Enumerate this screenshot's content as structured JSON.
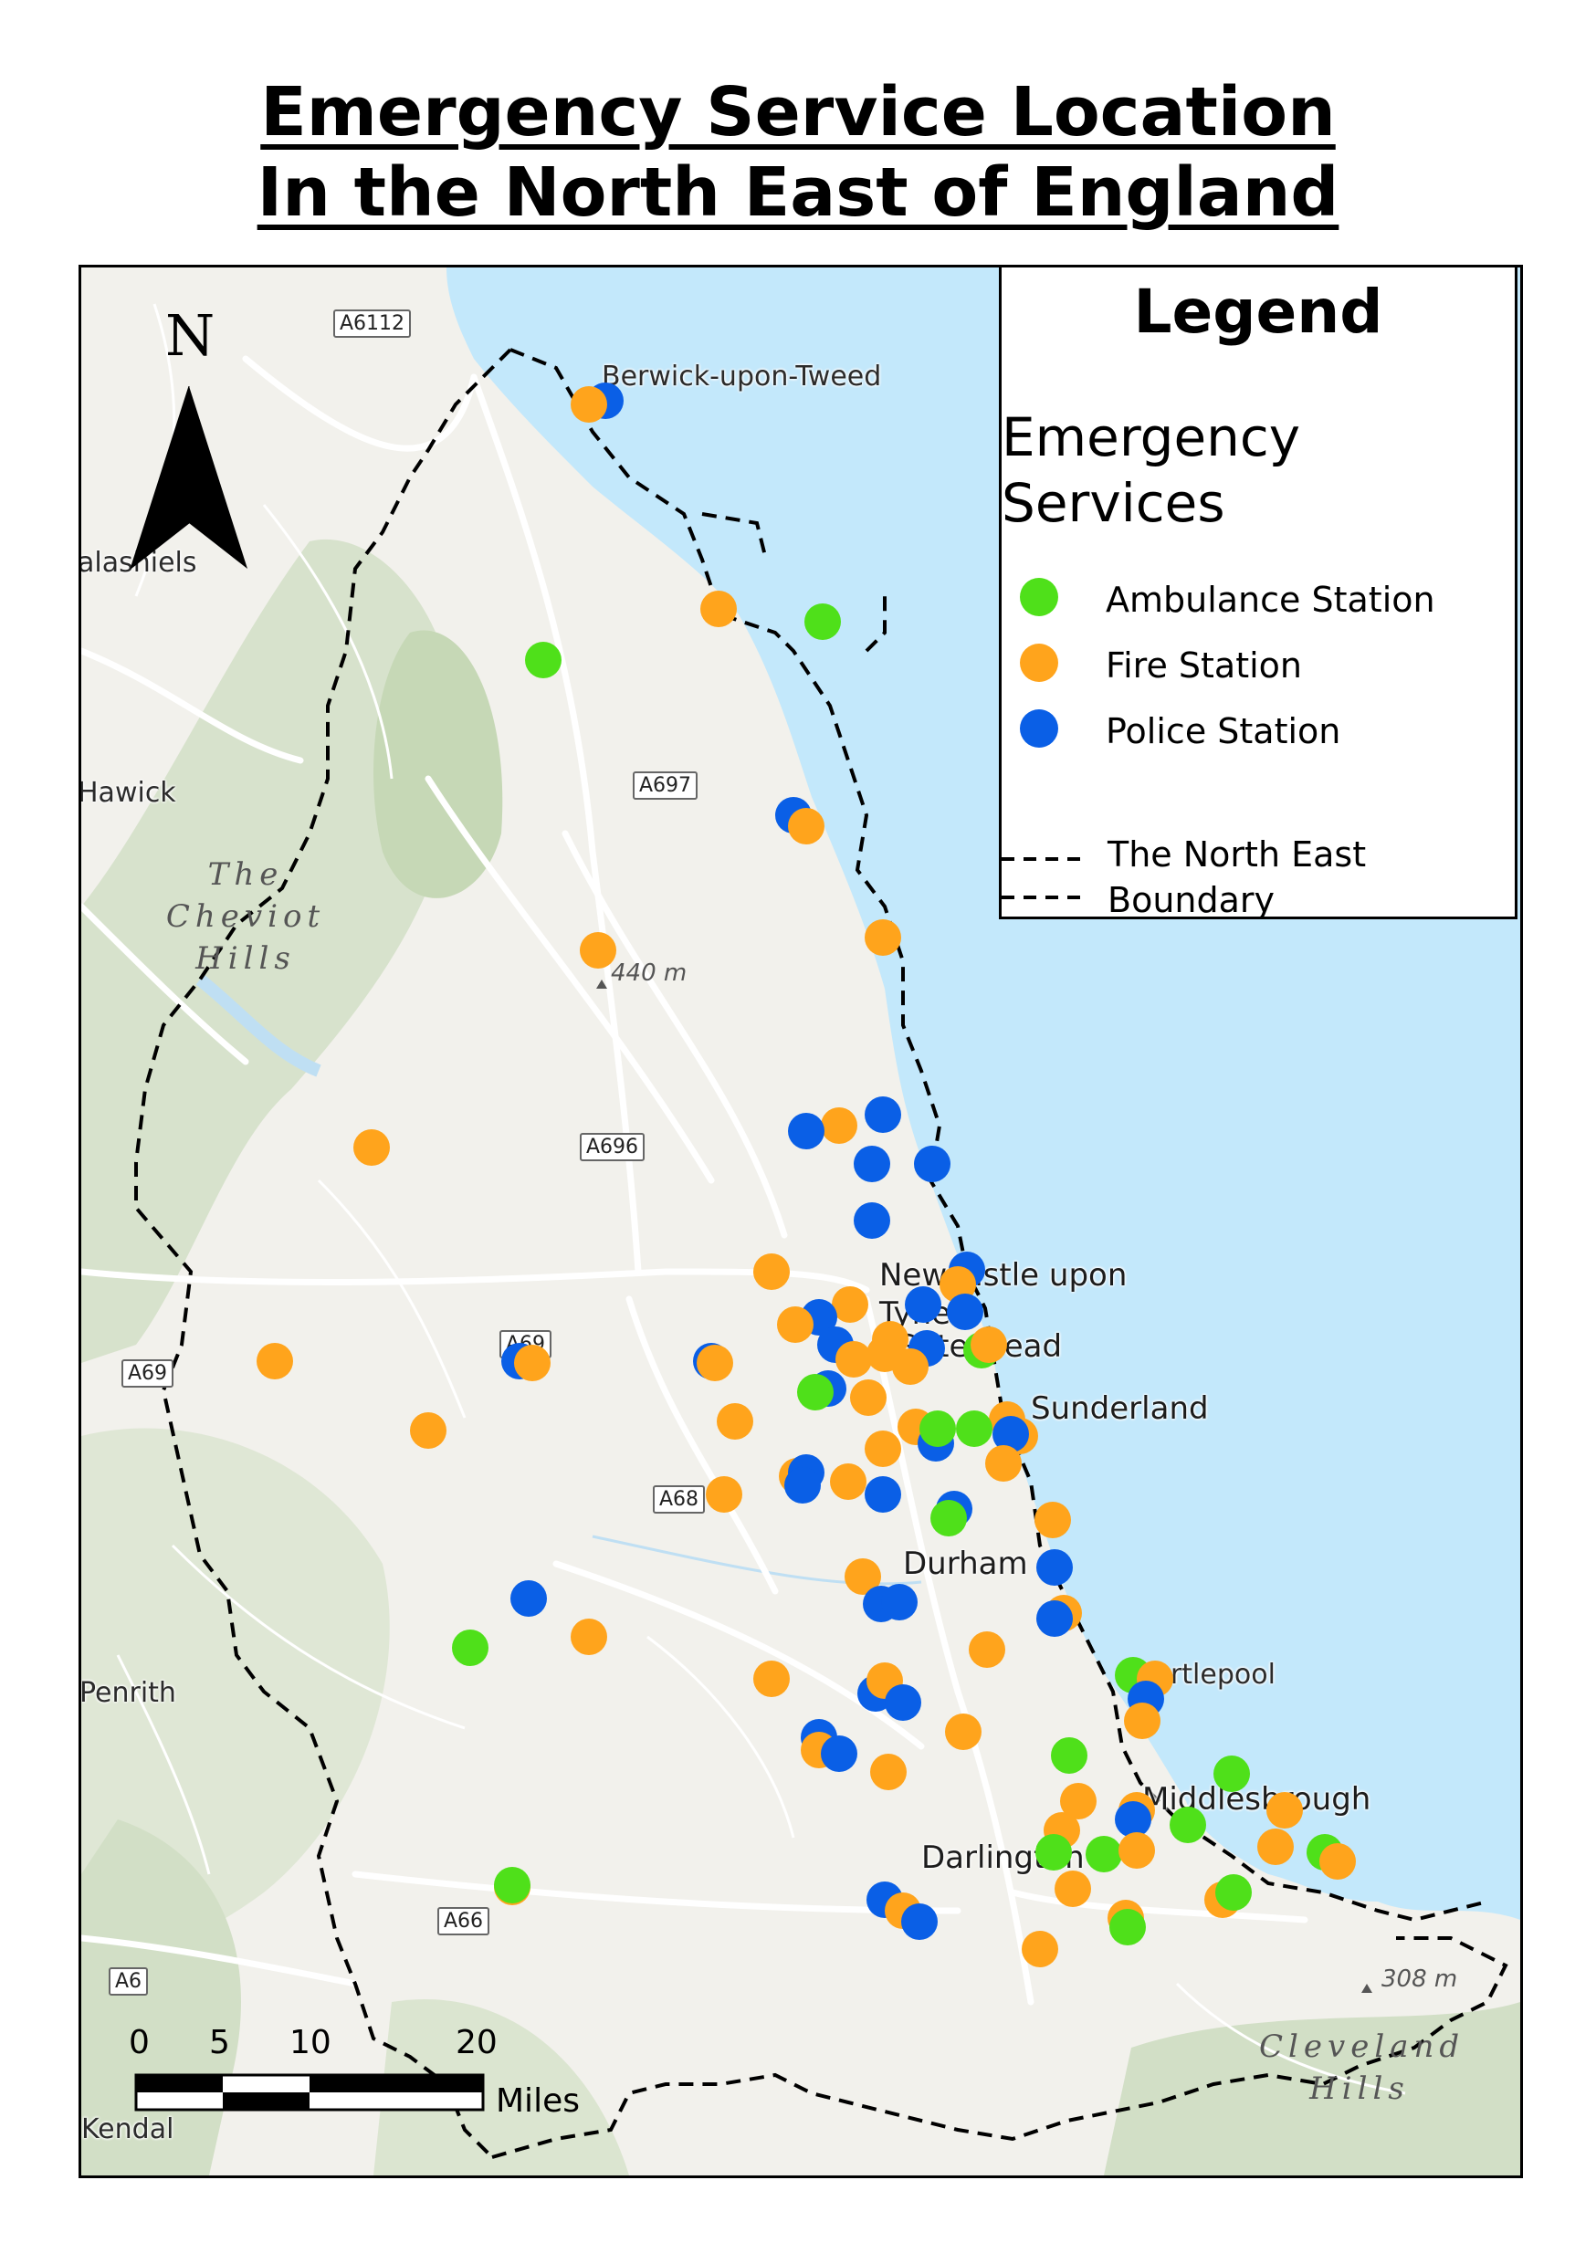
{
  "title": {
    "line1": "Emergency Service Location",
    "line2": "In the North East of England"
  },
  "legend": {
    "title": "Legend",
    "subtitle_line1": "Emergency",
    "subtitle_line2": "Services",
    "items": [
      {
        "label": "Ambulance Station",
        "color": "#4fe01a"
      },
      {
        "label": "Fire Station",
        "color": "#ffa41c"
      },
      {
        "label": "Police Station",
        "color": "#0a5fe6"
      }
    ],
    "boundary_line1": "The North East",
    "boundary_line2": "Boundary"
  },
  "north_label": "N",
  "scale": {
    "ticks": [
      "0",
      "5",
      "10",
      "20"
    ],
    "unit": "Miles"
  },
  "colors": {
    "sea": "#c3e8fb",
    "land": "#f2f1ec",
    "hills": "#d2dfc6",
    "road": "#ffffff"
  },
  "places": {
    "berwick": "Berwick-upon-Tweed",
    "galashiels": "alashiels",
    "hawick": "Hawick",
    "newcastle1": "Newcastle upon",
    "newcastle2": "Tyne",
    "gateshead": "Gateshead",
    "sunderland": "Sunderland",
    "durham": "Durham",
    "hartlepool": "Hartlepool",
    "middlesbrough": "Middlesbrough",
    "darlington": "Darlington",
    "penrith": "Penrith",
    "kendal": "Kendal",
    "cheviot1": "The",
    "cheviot2": "Cheviot",
    "cheviot3": "Hills",
    "cleveland1": "Cleveland",
    "cleveland2": "Hills",
    "elev1": "440 m",
    "elev2": "308 m"
  },
  "roads": {
    "a6112": "A6112",
    "a697": "A697",
    "a696": "A696",
    "a69a": "A69",
    "a69b": "A69",
    "a68": "A68",
    "a66": "A66",
    "a6": "A6"
  }
}
